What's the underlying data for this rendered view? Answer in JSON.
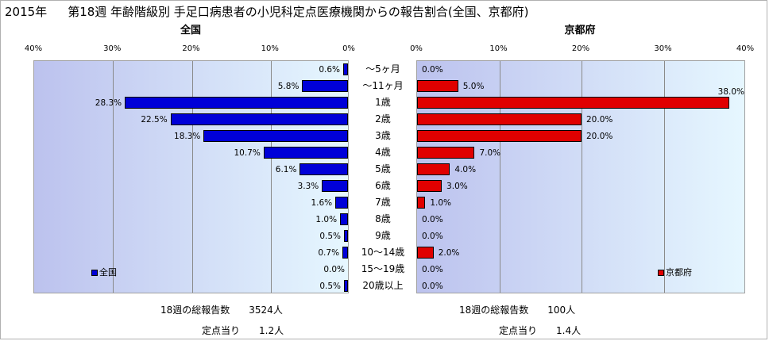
{
  "title": {
    "year": "2015年",
    "text": "第18週 年齢階級別 手足口病患者の小児科定点医療機関からの報告割合(全国、京都府)"
  },
  "chart_data": [
    {
      "type": "bar",
      "orientation": "horizontal",
      "direction": "right-to-left",
      "title": "全国",
      "categories": [
        "～5ヶ月",
        "～11ヶ月",
        "1歳",
        "2歳",
        "3歳",
        "4歳",
        "5歳",
        "6歳",
        "7歳",
        "8歳",
        "9歳",
        "10～14歳",
        "15～19歳",
        "20歳以上"
      ],
      "series": [
        {
          "name": "全国",
          "values": [
            0.6,
            5.8,
            28.3,
            22.5,
            18.3,
            10.7,
            6.1,
            3.3,
            1.6,
            1.0,
            0.5,
            0.7,
            0.0,
            0.5
          ]
        }
      ],
      "value_labels": [
        "0.6%",
        "5.8%",
        "28.3%",
        "22.5%",
        "18.3%",
        "10.7%",
        "6.1%",
        "3.3%",
        "1.6%",
        "1.0%",
        "0.5%",
        "0.7%",
        "0.0%",
        "0.5%"
      ],
      "xlim": [
        0,
        40
      ],
      "ticks": [
        "40%",
        "30%",
        "20%",
        "10%",
        "0%"
      ],
      "grid": true,
      "legend": "bottom-left",
      "color": "#0000d8"
    },
    {
      "type": "bar",
      "orientation": "horizontal",
      "direction": "left-to-right",
      "title": "京都府",
      "categories": [
        "～5ヶ月",
        "～11ヶ月",
        "1歳",
        "2歳",
        "3歳",
        "4歳",
        "5歳",
        "6歳",
        "7歳",
        "8歳",
        "9歳",
        "10～14歳",
        "15～19歳",
        "20歳以上"
      ],
      "series": [
        {
          "name": "京都府",
          "values": [
            0.0,
            5.0,
            38.0,
            20.0,
            20.0,
            7.0,
            4.0,
            3.0,
            1.0,
            0.0,
            0.0,
            2.0,
            0.0,
            0.0
          ]
        }
      ],
      "value_labels": [
        "0.0%",
        "5.0%",
        "38.0%",
        "20.0%",
        "20.0%",
        "7.0%",
        "4.0%",
        "3.0%",
        "1.0%",
        "0.0%",
        "0.0%",
        "2.0%",
        "0.0%",
        "0.0%"
      ],
      "xlim": [
        0,
        40
      ],
      "ticks": [
        "0%",
        "10%",
        "20%",
        "30%",
        "40%"
      ],
      "grid": true,
      "legend": "bottom-right",
      "color": "#e00000"
    }
  ],
  "footer": {
    "national": {
      "total_label": "18週の総報告数",
      "total_value": "3524人",
      "per_label": "定点当り",
      "per_value": "1.2人"
    },
    "kyoto": {
      "total_label": "18週の総報告数",
      "total_value": "100人",
      "per_label": "定点当り",
      "per_value": "1.4人"
    }
  }
}
